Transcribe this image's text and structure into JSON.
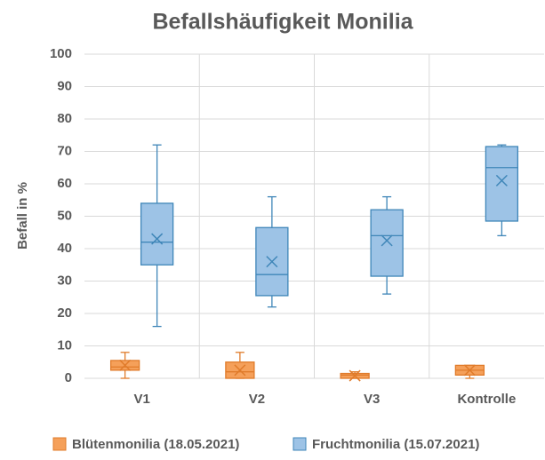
{
  "chart_data": {
    "type": "box",
    "title": "Befallshäufigkeit Monilia",
    "y_label": "Befall in %",
    "categories": [
      "V1",
      "V2",
      "V3",
      "Kontrolle"
    ],
    "ylim": [
      0,
      100
    ],
    "yticks": [
      0,
      10,
      20,
      30,
      40,
      50,
      60,
      70,
      80,
      90,
      100
    ],
    "grid": true,
    "legend": "bottom",
    "series": [
      {
        "name": "Blütenmonilia (18.05.2021)",
        "color": "#f5a05a",
        "edge": "#e07b2a",
        "min": [
          0,
          0,
          0,
          0
        ],
        "q1": [
          2.5,
          0,
          0,
          1
        ],
        "median": [
          3.5,
          2,
          1,
          2.5
        ],
        "q3": [
          5.5,
          5,
          1.5,
          4
        ],
        "max": [
          8,
          8,
          2,
          4
        ],
        "mean": [
          4,
          2.5,
          0.8,
          2.5
        ]
      },
      {
        "name": "Fruchtmonilia (15.07.2021)",
        "color": "#9dc3e6",
        "edge": "#3f86b8",
        "min": [
          16,
          22,
          26,
          44
        ],
        "q1": [
          35,
          25.5,
          31.5,
          48.5
        ],
        "median": [
          42,
          32,
          44,
          65
        ],
        "q3": [
          54,
          46.5,
          52,
          71.5
        ],
        "max": [
          72,
          56,
          56,
          72
        ],
        "mean": [
          43,
          36,
          42.5,
          61
        ]
      }
    ]
  }
}
